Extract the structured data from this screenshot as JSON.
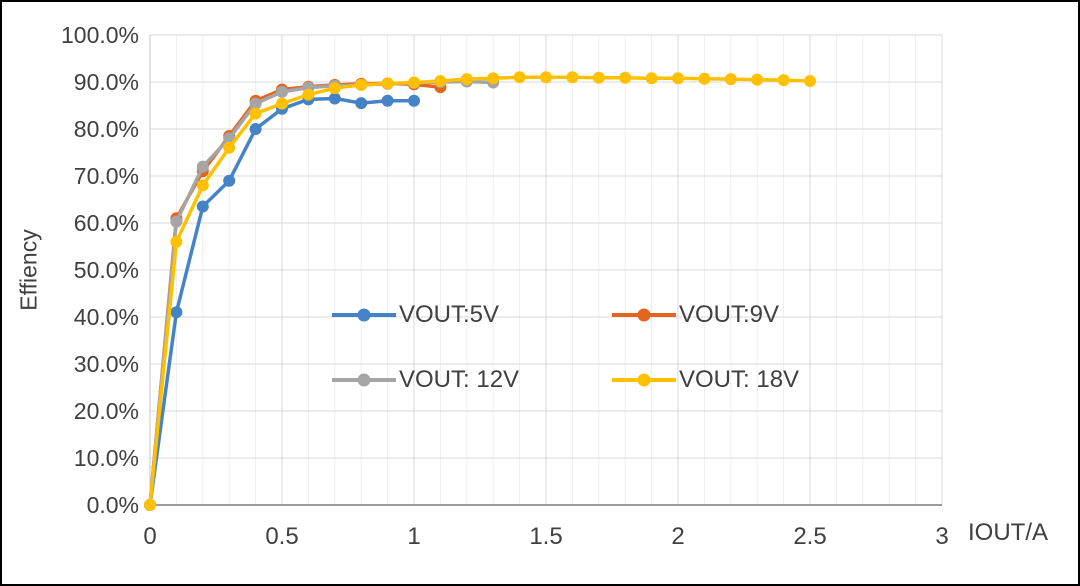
{
  "page": {
    "background": "#ffffff",
    "frame_color": "#000000"
  },
  "chart_data": {
    "type": "line",
    "title": "",
    "xlabel": "IOUT/A",
    "ylabel": "Effiency",
    "xlim": [
      0,
      3
    ],
    "ylim_percent": [
      0,
      100
    ],
    "grid": {
      "on": true,
      "x_minor_step": 0.1,
      "x_major_step": 0.5,
      "y_step_percent": 10,
      "minor_color": "#EFEFEF",
      "major_color": "#D8D8D8"
    },
    "axis_color": "#9B9B9B",
    "left_axis_color": "#C6C6C6",
    "text_color": "#404040",
    "legend_position": "inside-plot 2x2 grid",
    "x_ticks": [
      {
        "v": 0,
        "label": "0"
      },
      {
        "v": 0.5,
        "label": "0.5"
      },
      {
        "v": 1,
        "label": "1"
      },
      {
        "v": 1.5,
        "label": "1.5"
      },
      {
        "v": 2,
        "label": "2"
      },
      {
        "v": 2.5,
        "label": "2.5"
      },
      {
        "v": 3,
        "label": "3"
      }
    ],
    "y_ticks": [
      {
        "v": 0,
        "label": "0.0%"
      },
      {
        "v": 10,
        "label": "10.0%"
      },
      {
        "v": 20,
        "label": "20.0%"
      },
      {
        "v": 30,
        "label": "30.0%"
      },
      {
        "v": 40,
        "label": "40.0%"
      },
      {
        "v": 50,
        "label": "50.0%"
      },
      {
        "v": 60,
        "label": "60.0%"
      },
      {
        "v": 70,
        "label": "70.0%"
      },
      {
        "v": 80,
        "label": "80.0%"
      },
      {
        "v": 90,
        "label": "90.0%"
      },
      {
        "v": 100,
        "label": "100.0%"
      }
    ],
    "series": [
      {
        "name": "VOUT:5V",
        "color": "#4583C7",
        "x": [
          0,
          0.1,
          0.2,
          0.3,
          0.4,
          0.5,
          0.6,
          0.7,
          0.8,
          0.9,
          1.0
        ],
        "y_percent": [
          0,
          41,
          63.5,
          69,
          80,
          84.3,
          86.3,
          86.5,
          85.5,
          86,
          86
        ]
      },
      {
        "name": "VOUT:9V",
        "color": "#E5651E",
        "x": [
          0,
          0.1,
          0.2,
          0.3,
          0.4,
          0.5,
          0.6,
          0.7,
          0.8,
          0.9,
          1.0,
          1.1
        ],
        "y_percent": [
          0,
          61,
          71,
          78.5,
          86,
          88.4,
          89,
          89.4,
          89.6,
          89.7,
          89.5,
          88.9
        ]
      },
      {
        "name": "VOUT: 12V",
        "color": "#A5A5A5",
        "x": [
          0,
          0.1,
          0.2,
          0.3,
          0.4,
          0.5,
          0.6,
          0.7,
          0.8,
          0.9,
          1.0,
          1.1,
          1.2,
          1.3
        ],
        "y_percent": [
          0,
          60.3,
          72,
          78,
          85.4,
          87.9,
          88.8,
          89.2,
          89.4,
          89.6,
          89.8,
          90,
          90.1,
          89.9
        ]
      },
      {
        "name": "VOUT: 18V",
        "color": "#FFC000",
        "x": [
          0,
          0.1,
          0.2,
          0.3,
          0.4,
          0.5,
          0.6,
          0.7,
          0.8,
          0.9,
          1.0,
          1.1,
          1.2,
          1.3,
          1.4,
          1.5,
          1.6,
          1.7,
          1.8,
          1.9,
          2.0,
          2.1,
          2.2,
          2.3,
          2.4,
          2.5
        ],
        "y_percent": [
          0,
          56,
          68,
          76,
          83.3,
          85.4,
          87.3,
          88.7,
          89.4,
          89.7,
          89.9,
          90.2,
          90.6,
          90.8,
          91,
          91,
          91,
          90.9,
          90.9,
          90.8,
          90.8,
          90.7,
          90.6,
          90.5,
          90.4,
          90.2
        ]
      }
    ]
  }
}
